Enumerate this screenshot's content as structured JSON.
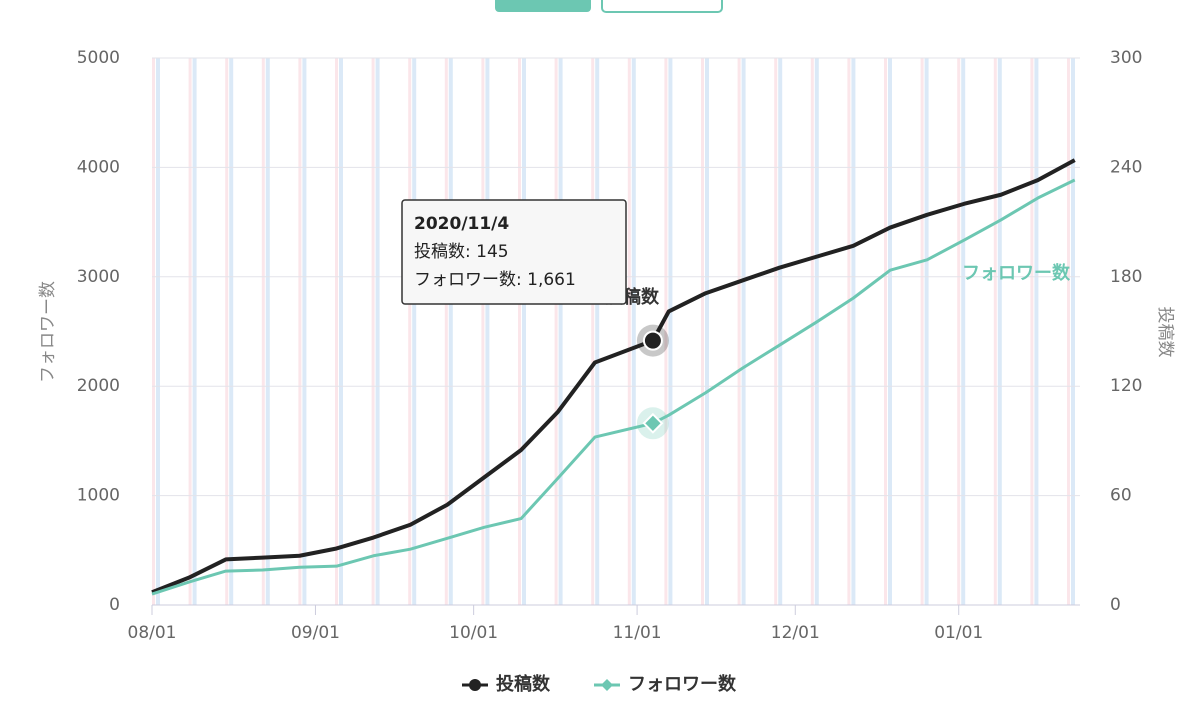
{
  "chart_data": {
    "type": "line",
    "x": [
      "2020-08-01",
      "2020-08-08",
      "2020-08-15",
      "2020-08-22",
      "2020-08-29",
      "2020-09-05",
      "2020-09-12",
      "2020-09-19",
      "2020-09-26",
      "2020-10-03",
      "2020-10-10",
      "2020-10-17",
      "2020-10-24",
      "2020-11-04",
      "2020-11-07",
      "2020-11-14",
      "2020-11-21",
      "2020-11-28",
      "2020-12-05",
      "2020-12-12",
      "2020-12-19",
      "2020-12-26",
      "2021-01-02",
      "2021-01-09",
      "2021-01-16",
      "2021-01-23"
    ],
    "series": [
      {
        "name": "投稿数",
        "color": "#222222",
        "axis": "y2",
        "marker": "circle",
        "values": [
          7,
          15,
          25,
          26,
          27,
          31,
          37,
          44,
          55,
          70,
          85,
          106,
          133,
          145,
          161,
          171,
          178,
          185,
          191,
          197,
          207,
          214,
          220,
          225,
          233,
          244
        ]
      },
      {
        "name": "フォロワー数",
        "color": "#6cc7b2",
        "marker": "diamond",
        "values": [
          100,
          210,
          310,
          320,
          345,
          355,
          450,
          510,
          610,
          710,
          790,
          1160,
          1535,
          1661,
          1735,
          1940,
          2165,
          2375,
          2585,
          2805,
          3060,
          3155,
          3335,
          3520,
          3720,
          3885
        ]
      }
    ],
    "xlim": [
      "2020-08-01",
      "2021-01-24"
    ],
    "xticks": [
      {
        "value": "2020-08-01",
        "label": "08/01"
      },
      {
        "value": "2020-09-01",
        "label": "09/01"
      },
      {
        "value": "2020-10-01",
        "label": "10/01"
      },
      {
        "value": "2020-11-01",
        "label": "11/01"
      },
      {
        "value": "2020-12-01",
        "label": "12/01"
      },
      {
        "value": "2021-01-01",
        "label": "01/01"
      }
    ],
    "ylim": [
      0,
      5000
    ],
    "yticks": [
      0,
      1000,
      2000,
      3000,
      4000,
      5000
    ],
    "y2lim": [
      0,
      300
    ],
    "y2ticks": [
      0,
      60,
      120,
      180,
      240,
      300
    ],
    "y_label": "フォロワー数",
    "y2_label": "投稿数",
    "grid": true,
    "tooltip": {
      "index": 13,
      "title": "2020/11/4",
      "lines": [
        "投稿数: 145",
        "フォロワー数: 1,661"
      ]
    }
  }
}
